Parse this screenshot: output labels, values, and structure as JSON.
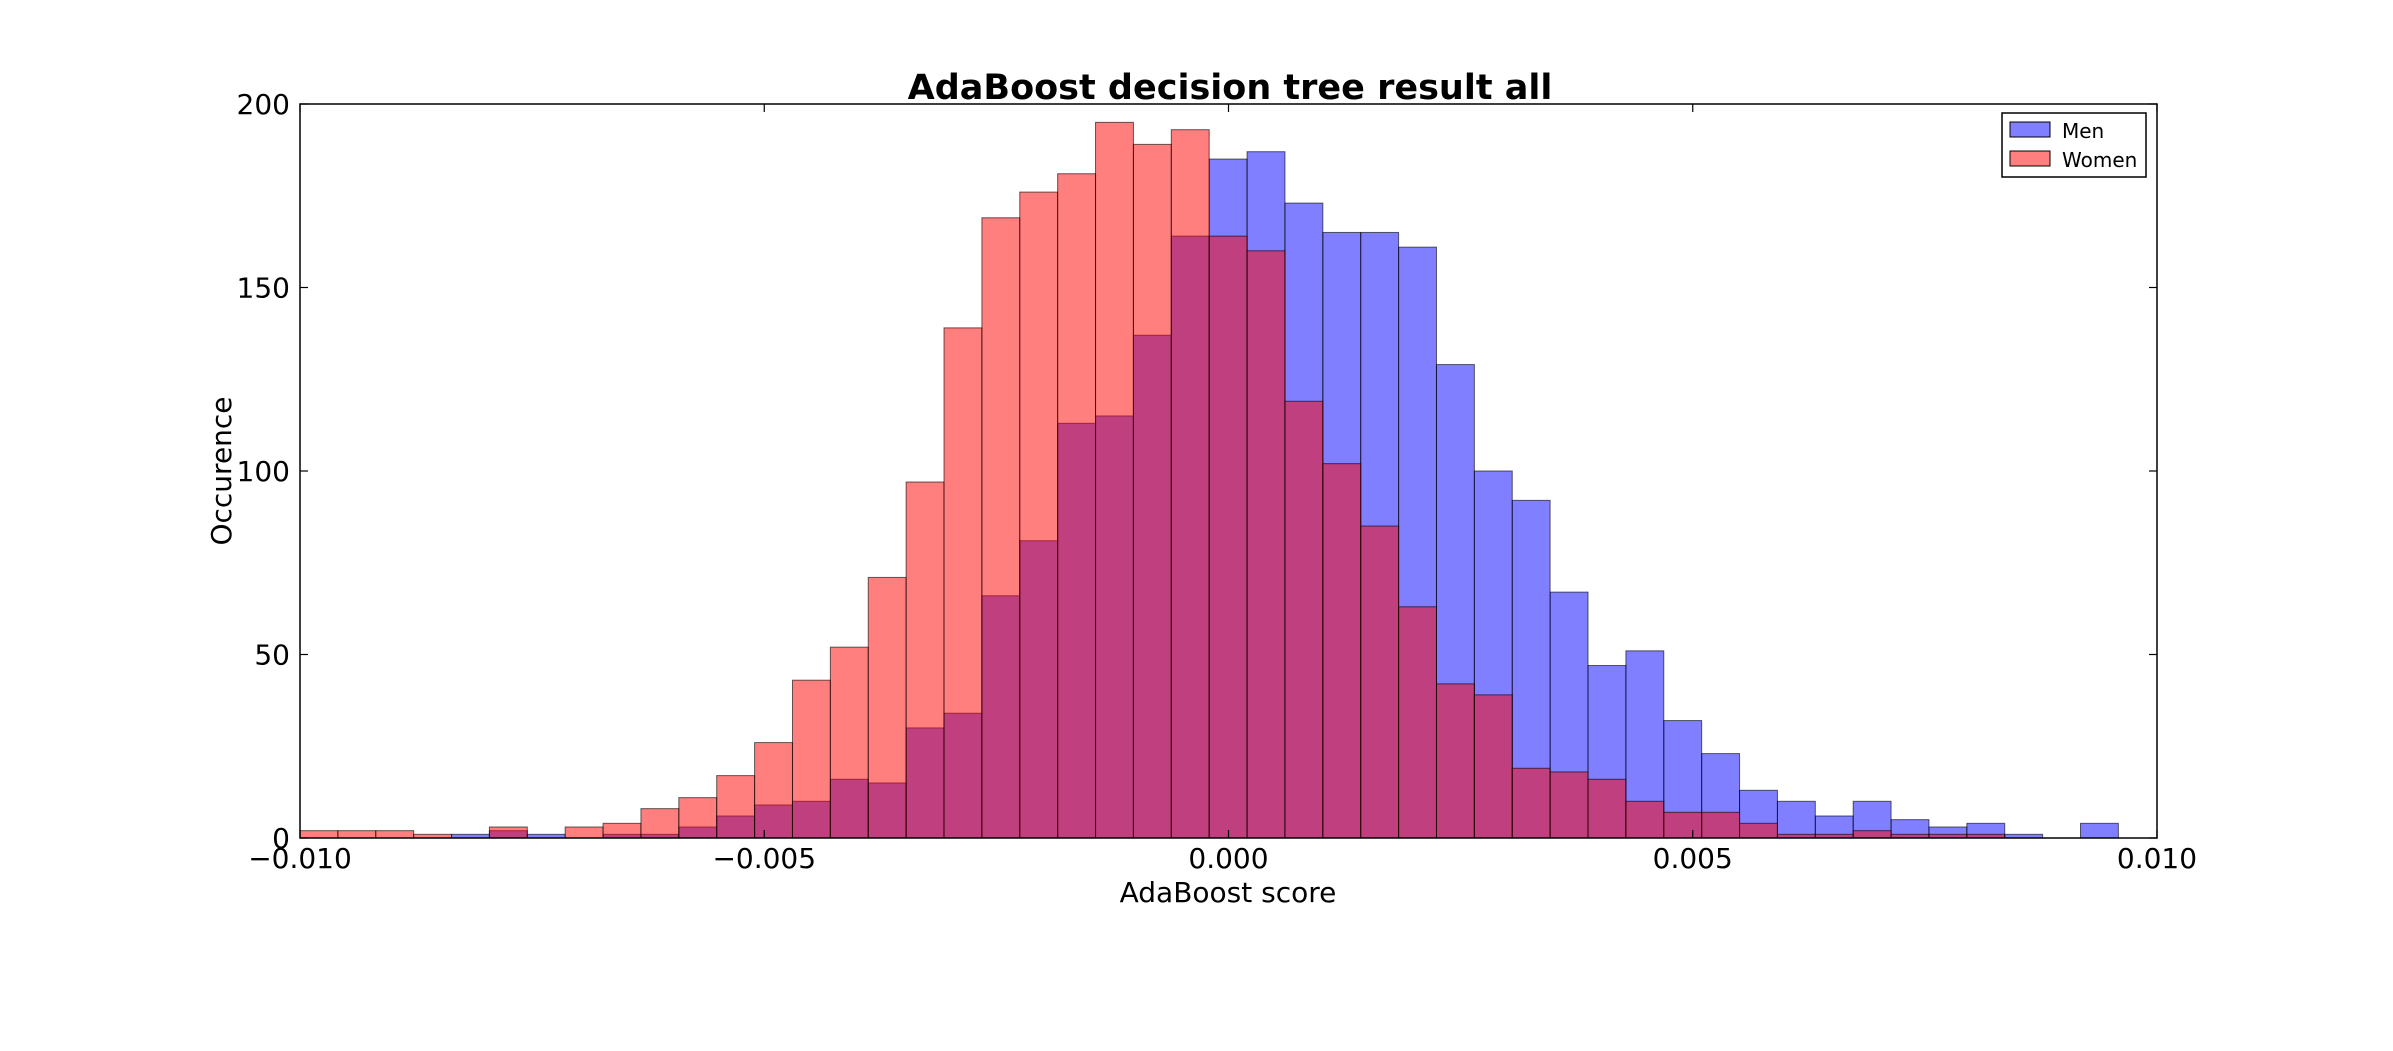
{
  "chart_data": {
    "type": "histogram",
    "title": "AdaBoost decision tree result all",
    "xlabel": "AdaBoost score",
    "ylabel": "Occurence",
    "xlim": [
      -0.01,
      0.01
    ],
    "ylim": [
      0,
      200
    ],
    "x_ticks": [
      -0.01,
      -0.005,
      0.0,
      0.005,
      0.01
    ],
    "x_tick_labels": [
      "−0.010",
      "−0.005",
      "0.000",
      "0.005",
      "0.010"
    ],
    "y_ticks": [
      0,
      50,
      100,
      150,
      200
    ],
    "y_tick_labels": [
      "0",
      "50",
      "100",
      "150",
      "200"
    ],
    "legend_position": "top-right",
    "grid": false,
    "bin_edges_start": -0.01,
    "bin_width": 0.000408,
    "series": [
      {
        "name": "Men",
        "color": "#0000ff",
        "alpha": 0.5,
        "values": [
          0,
          0,
          0,
          0,
          1,
          2,
          1,
          0,
          1,
          1,
          3,
          6,
          9,
          10,
          16,
          15,
          30,
          34,
          66,
          81,
          113,
          115,
          137,
          164,
          185,
          187,
          173,
          165,
          165,
          161,
          129,
          100,
          92,
          67,
          47,
          51,
          32,
          23,
          13,
          10,
          6,
          10,
          5,
          3,
          4,
          1,
          0,
          4,
          0
        ]
      },
      {
        "name": "Women",
        "color": "#ff0000",
        "alpha": 0.5,
        "values": [
          2,
          2,
          2,
          1,
          0,
          3,
          0,
          3,
          4,
          8,
          11,
          17,
          26,
          43,
          52,
          71,
          97,
          139,
          169,
          176,
          181,
          195,
          189,
          193,
          164,
          160,
          119,
          102,
          85,
          63,
          42,
          39,
          19,
          18,
          16,
          10,
          7,
          7,
          4,
          1,
          1,
          2,
          1,
          1,
          1,
          0,
          0,
          0,
          0
        ]
      }
    ]
  }
}
